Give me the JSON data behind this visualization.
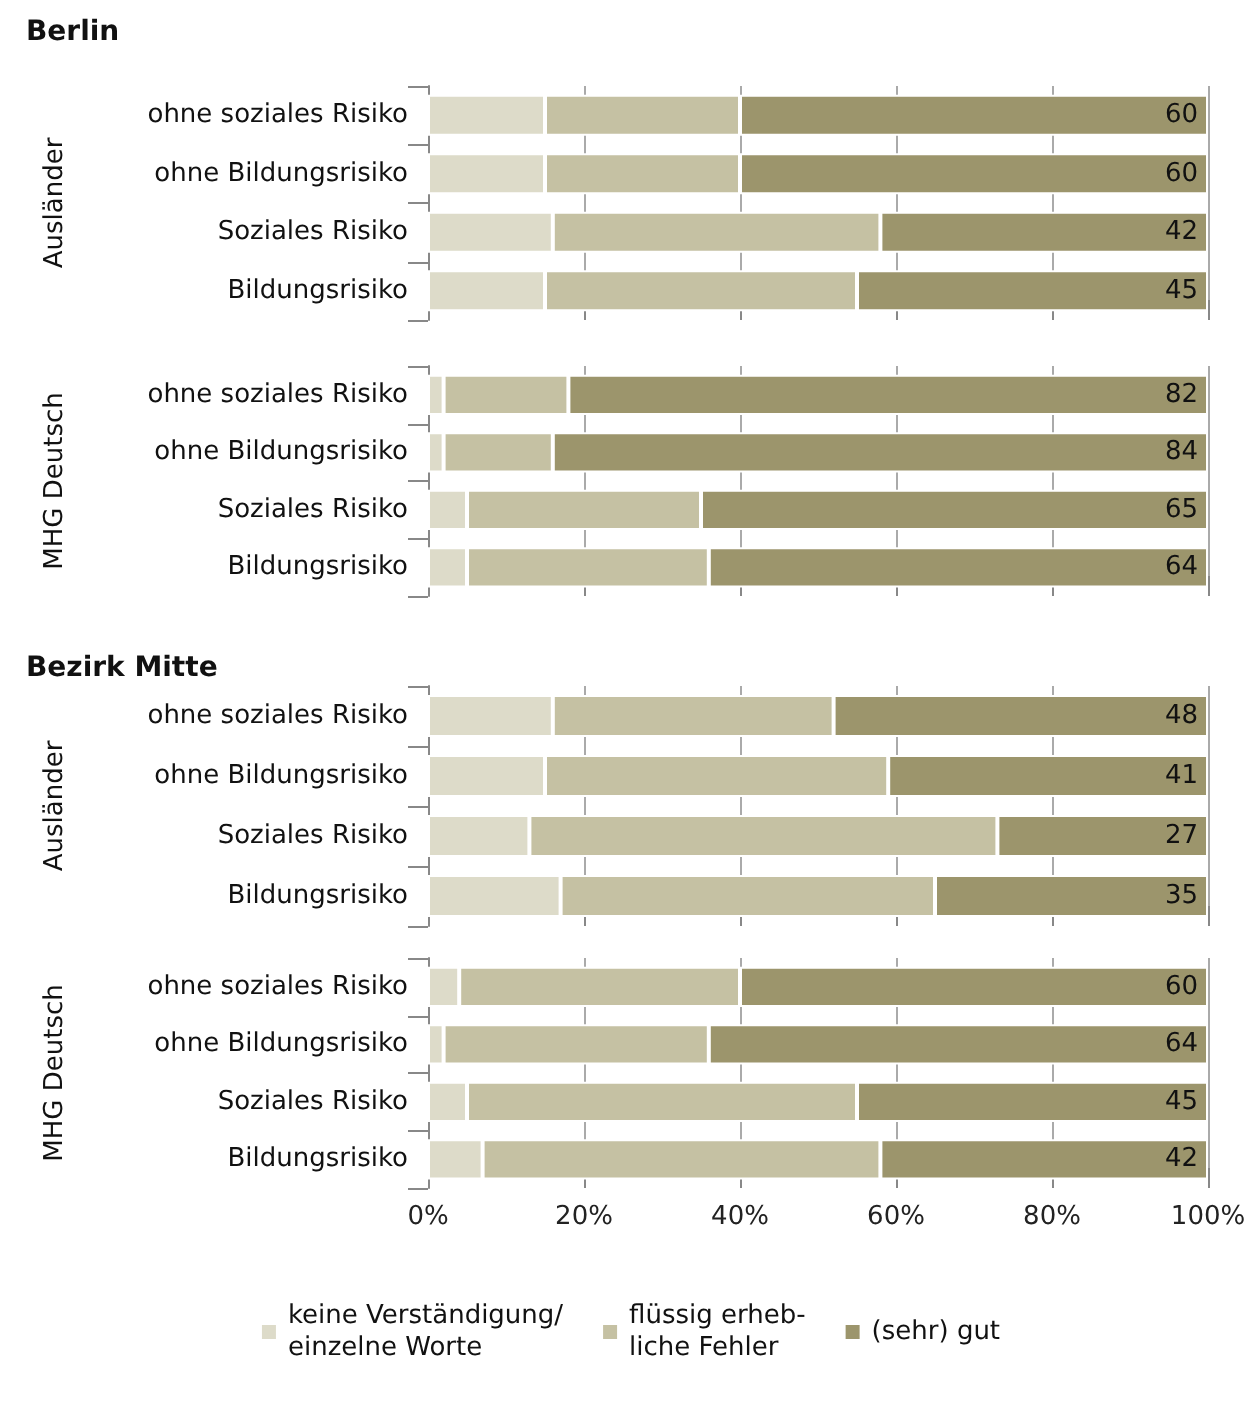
{
  "chart_data": [
    {
      "type": "bar",
      "orientation": "horizontal",
      "stacked": true,
      "title": "Berlin",
      "ylabel": "Ausländer",
      "categories": [
        "ohne soziales Risiko",
        "ohne Bildungsrisiko",
        "Soziales Risiko",
        "Bildungsrisiko"
      ],
      "series": [
        {
          "color": "#dddbc9",
          "values": [
            15,
            15,
            16,
            15
          ]
        },
        {
          "color": "#c5c1a3",
          "values": [
            25,
            25,
            42,
            40
          ]
        },
        {
          "color": "#9c956c",
          "values": [
            60,
            60,
            42,
            45
          ],
          "value_labels": [
            "60",
            "60",
            "42",
            "45"
          ]
        }
      ],
      "xlim": [
        0,
        100
      ],
      "xticks": [
        {
          "value": 0,
          "label": null
        },
        {
          "value": 20,
          "label": null
        },
        {
          "value": 40,
          "label": null
        },
        {
          "value": 60,
          "label": null
        },
        {
          "value": 80,
          "label": null
        },
        {
          "value": 100,
          "label": null
        }
      ],
      "grid": "x",
      "tick_labels": "y"
    },
    {
      "type": "bar",
      "orientation": "horizontal",
      "stacked": true,
      "ylabel": "MHG Deutsch",
      "categories": [
        "ohne soziales Risiko",
        "ohne Bildungsrisiko",
        "Soziales Risiko",
        "Bildungsrisiko"
      ],
      "series": [
        {
          "color": "#dddbc9",
          "values": [
            2,
            2,
            5,
            5
          ]
        },
        {
          "color": "#c5c1a3",
          "values": [
            16,
            14,
            30,
            31
          ]
        },
        {
          "color": "#9c956c",
          "values": [
            82,
            84,
            65,
            64
          ],
          "value_labels": [
            "82",
            "84",
            "65",
            "64"
          ]
        }
      ],
      "xlim": [
        0,
        100
      ],
      "xticks": [
        {
          "value": 0,
          "label": null
        },
        {
          "value": 20,
          "label": null
        },
        {
          "value": 40,
          "label": null
        },
        {
          "value": 60,
          "label": null
        },
        {
          "value": 80,
          "label": null
        },
        {
          "value": 100,
          "label": null
        }
      ],
      "grid": "x",
      "tick_labels": "y"
    },
    {
      "type": "bar",
      "orientation": "horizontal",
      "stacked": true,
      "title": "Bezirk Mitte",
      "ylabel": "Ausländer",
      "categories": [
        "ohne soziales Risiko",
        "ohne Bildungsrisiko",
        "Soziales Risiko",
        "Bildungsrisiko"
      ],
      "series": [
        {
          "color": "#dddbc9",
          "values": [
            16,
            15,
            13,
            17
          ]
        },
        {
          "color": "#c5c1a3",
          "values": [
            36,
            44,
            60,
            48
          ]
        },
        {
          "color": "#9c956c",
          "values": [
            48,
            41,
            27,
            35
          ],
          "value_labels": [
            "48",
            "41",
            "27",
            "35"
          ]
        }
      ],
      "xlim": [
        0,
        100
      ],
      "xticks": [
        {
          "value": 0,
          "label": null
        },
        {
          "value": 20,
          "label": null
        },
        {
          "value": 40,
          "label": null
        },
        {
          "value": 60,
          "label": null
        },
        {
          "value": 80,
          "label": null
        },
        {
          "value": 100,
          "label": null
        }
      ],
      "grid": "x",
      "tick_labels": "y"
    },
    {
      "type": "bar",
      "orientation": "horizontal",
      "stacked": true,
      "ylabel": "MHG Deutsch",
      "categories": [
        "ohne soziales Risiko",
        "ohne Bildungsrisiko",
        "Soziales Risiko",
        "Bildungsrisiko"
      ],
      "series": [
        {
          "name": "keine Verständigung/\neinzelne Worte",
          "color": "#dddbc9",
          "values": [
            4,
            2,
            5,
            7
          ]
        },
        {
          "name": "flüssig erheb-\nliche Fehler",
          "color": "#c5c1a3",
          "values": [
            36,
            34,
            50,
            51
          ]
        },
        {
          "name": "(sehr) gut",
          "color": "#9c956c",
          "values": [
            60,
            64,
            45,
            42
          ],
          "value_labels": [
            "60",
            "64",
            "45",
            "42"
          ]
        }
      ],
      "xlim": [
        0,
        100
      ],
      "xticks": [
        {
          "value": 0,
          "label": "0%"
        },
        {
          "value": 20,
          "label": "20%"
        },
        {
          "value": 40,
          "label": "40%"
        },
        {
          "value": 60,
          "label": "60%"
        },
        {
          "value": 80,
          "label": "80%"
        },
        {
          "value": 100,
          "label": "100%"
        }
      ],
      "grid": "x",
      "legend": "bottom"
    }
  ]
}
